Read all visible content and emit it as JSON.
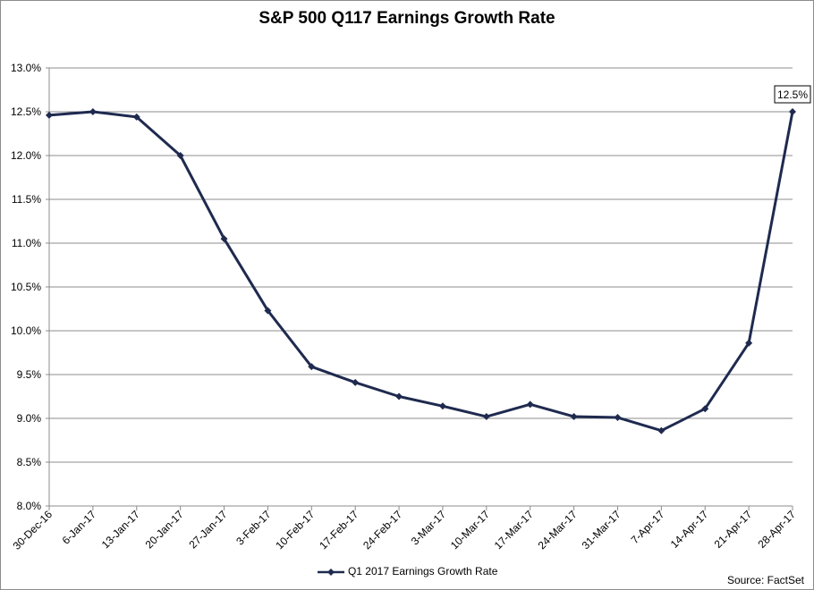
{
  "chart_data": {
    "type": "line",
    "title": "S&P 500 Q117 Earnings Growth Rate",
    "xlabel": "",
    "ylabel": "",
    "categories": [
      "30-Dec-16",
      "6-Jan-17",
      "13-Jan-17",
      "20-Jan-17",
      "27-Jan-17",
      "3-Feb-17",
      "10-Feb-17",
      "17-Feb-17",
      "24-Feb-17",
      "3-Mar-17",
      "10-Mar-17",
      "17-Mar-17",
      "24-Mar-17",
      "31-Mar-17",
      "7-Apr-17",
      "14-Apr-17",
      "21-Apr-17",
      "28-Apr-17"
    ],
    "series": [
      {
        "name": "Q1 2017 Earnings Growth Rate",
        "color": "#1f2a4f",
        "values": [
          12.46,
          12.5,
          12.44,
          12.0,
          11.05,
          10.23,
          9.59,
          9.41,
          9.25,
          9.14,
          9.02,
          9.16,
          9.02,
          9.01,
          8.86,
          9.11,
          9.86,
          12.5
        ]
      }
    ],
    "ylim": [
      8.0,
      13.0
    ],
    "yticks": [
      8.0,
      8.5,
      9.0,
      9.5,
      10.0,
      10.5,
      11.0,
      11.5,
      12.0,
      12.5,
      13.0
    ],
    "ytick_labels": [
      "8.0%",
      "8.5%",
      "9.0%",
      "9.5%",
      "10.0%",
      "10.5%",
      "11.0%",
      "11.5%",
      "12.0%",
      "12.5%",
      "13.0%"
    ],
    "grid": true,
    "legend_position": "bottom-center",
    "annotations": [
      {
        "category_index": 17,
        "text": "12.5%"
      }
    ]
  },
  "source_note": "Source: FactSet"
}
